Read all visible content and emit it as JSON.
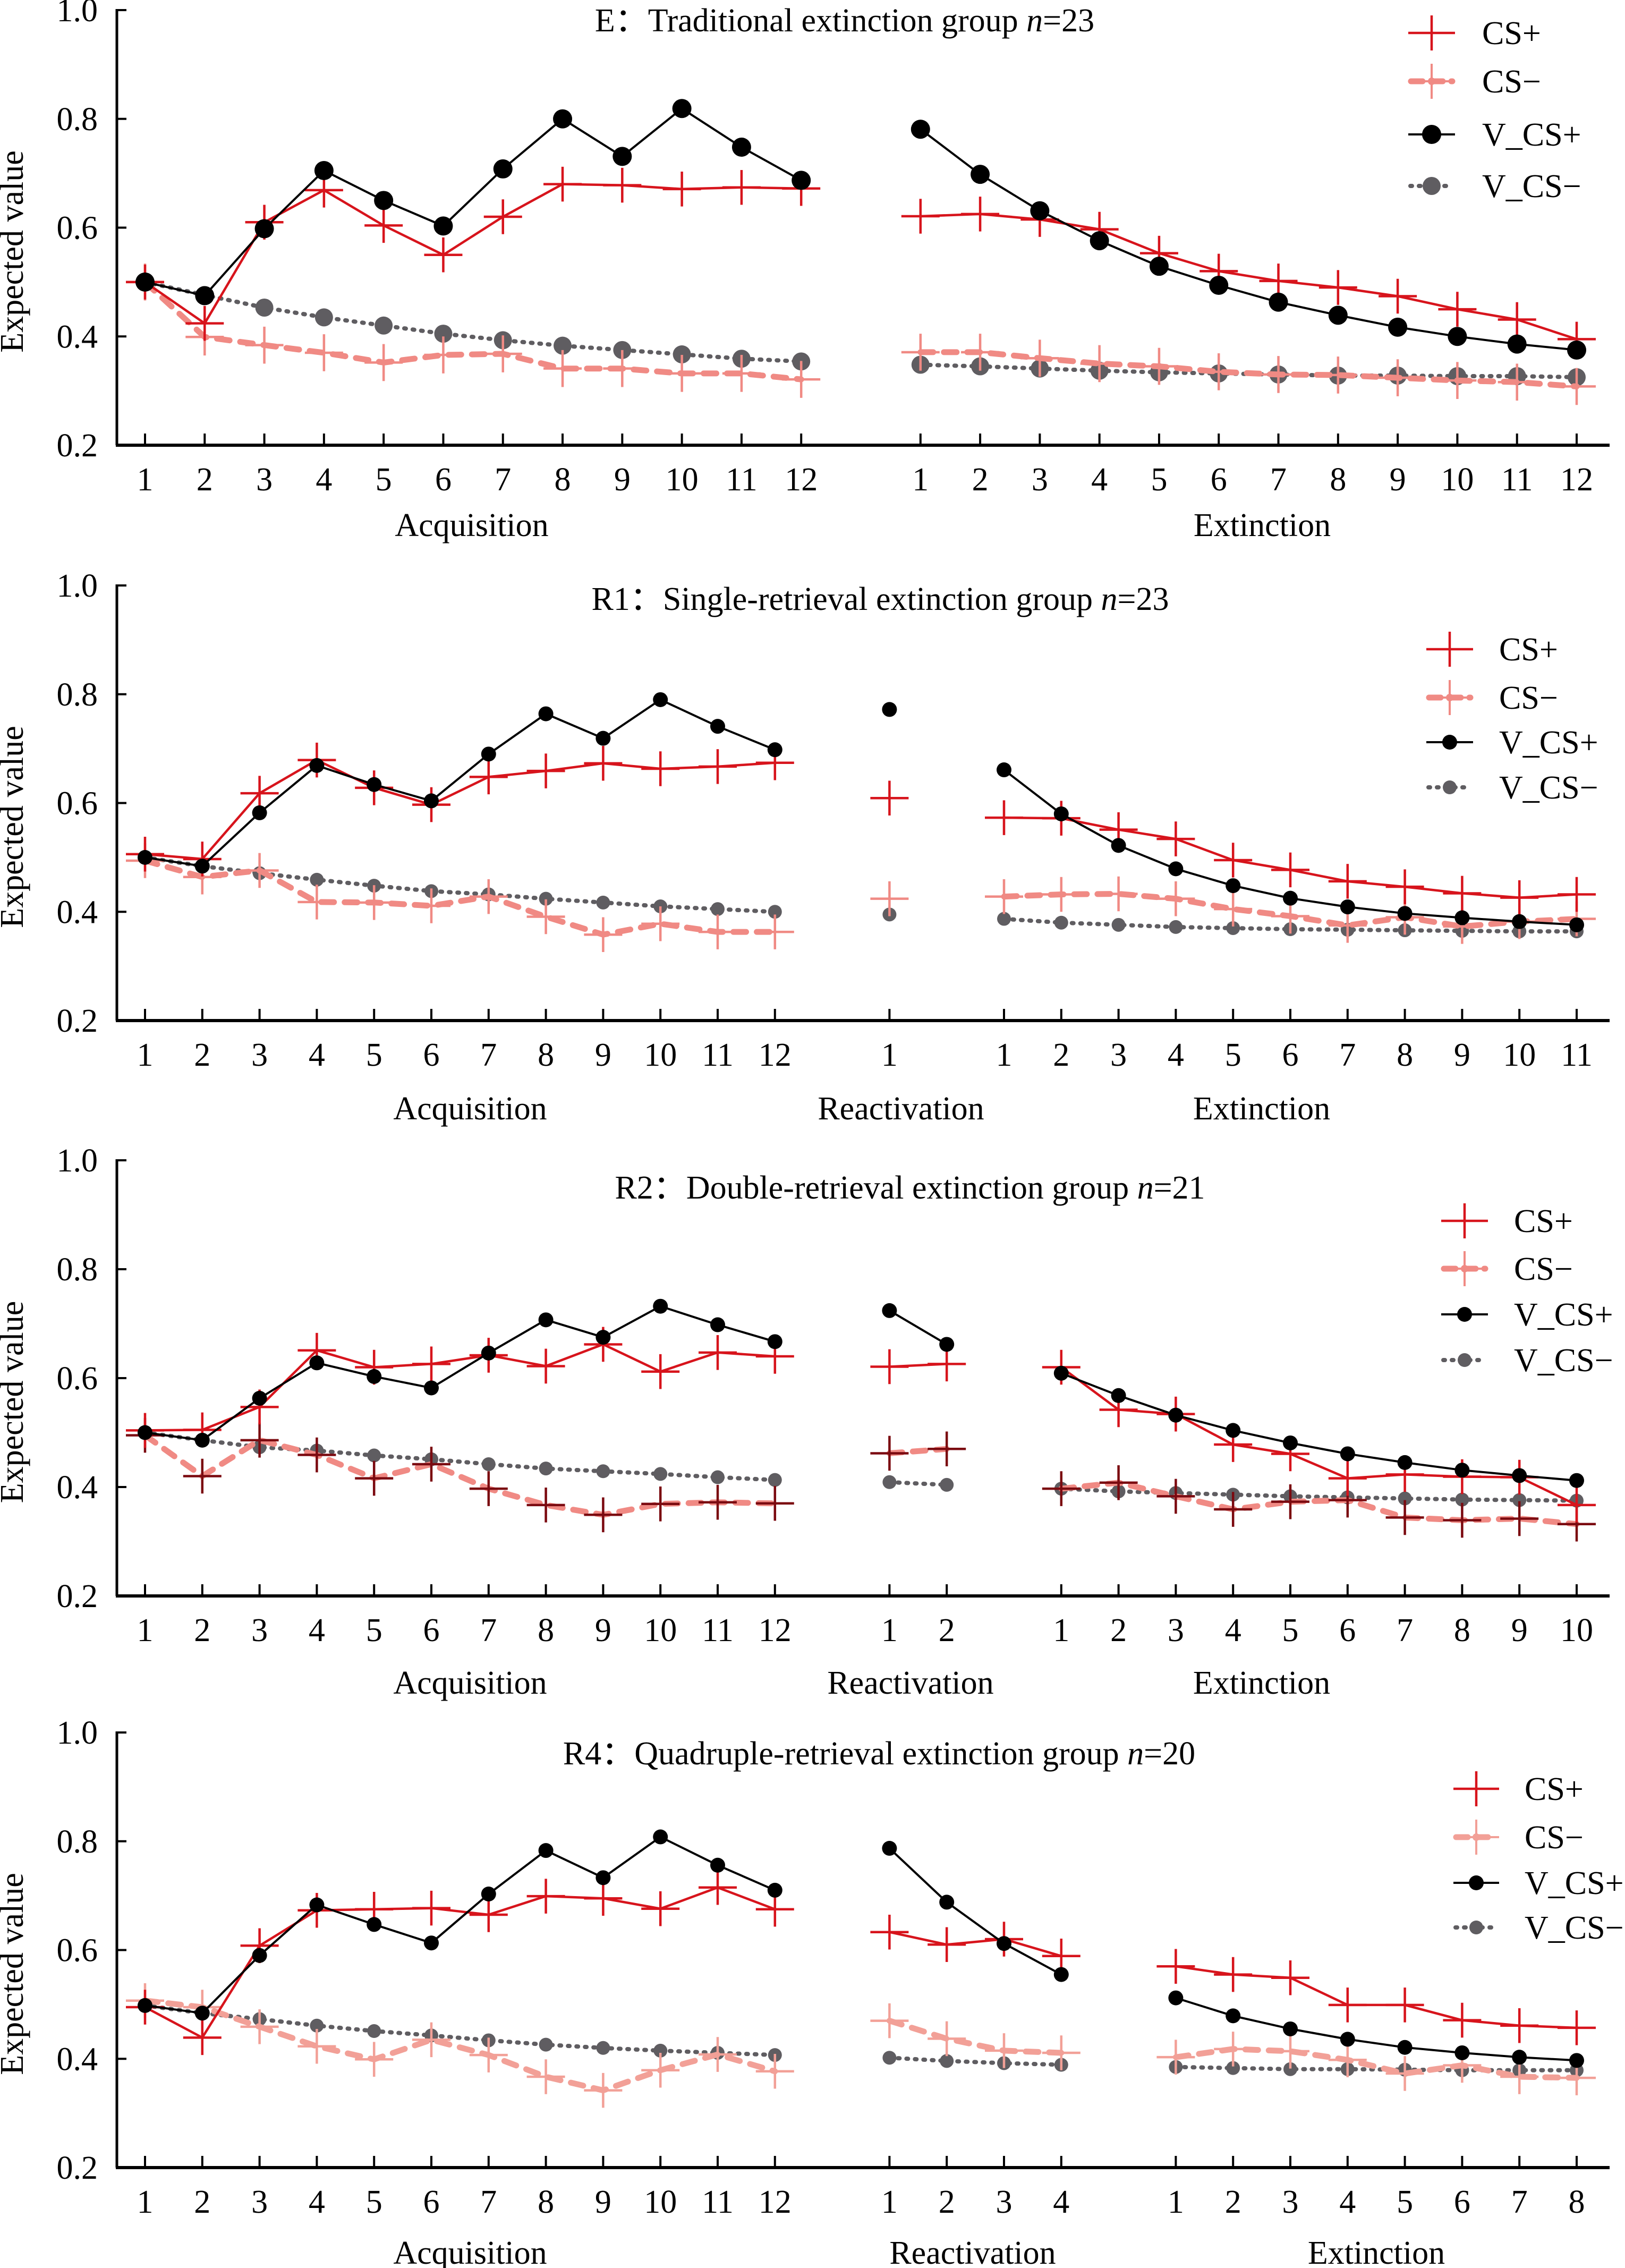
{
  "chart_data": [
    {
      "type": "line",
      "panel_id": "E",
      "title": "E：Traditional extinction group n=23",
      "title_parts": {
        "prefix": "E：Traditional extinction group ",
        "n_symbol": "n",
        "n_value": "=23"
      },
      "n": 23,
      "ylabel": "Expected value",
      "ylim": [
        0.2,
        1.0
      ],
      "yticks": [
        0.2,
        0.4,
        0.6,
        0.8,
        1.0
      ],
      "ytick_labels": [
        "0.2",
        "0.4",
        "0.6",
        "0.8",
        "1.0"
      ],
      "grid": false,
      "legend": {
        "placement": "top-right",
        "entries": [
          "CS+",
          "CS−",
          "V_CS+",
          "V_CS−"
        ]
      },
      "phases": [
        {
          "label": "Acquisition",
          "x": [
            1,
            2,
            3,
            4,
            5,
            6,
            7,
            8,
            9,
            10,
            11,
            12
          ]
        },
        {
          "label": "Extinction",
          "x": [
            1,
            2,
            3,
            4,
            5,
            6,
            7,
            8,
            9,
            10,
            11,
            12
          ]
        }
      ],
      "series": [
        {
          "name": "CS+",
          "kind": "cs_plus",
          "color": "#d7141c",
          "line_style": "solid",
          "marker": "plus with error bar",
          "sem_approx": 0.032,
          "values": [
            [
              0.5,
              0.424,
              0.61,
              0.669,
              0.604,
              0.55,
              0.62,
              0.68,
              0.678,
              0.671,
              0.674,
              0.672
            ],
            [
              0.621,
              0.625,
              0.615,
              0.597,
              0.553,
              0.52,
              0.502,
              0.49,
              0.474,
              0.45,
              0.431,
              0.395
            ]
          ]
        },
        {
          "name": "CS−",
          "kind": "cs_minus",
          "color": "#f08a84",
          "marker_color": "#f08a84",
          "line_style": "dashed",
          "marker": "plus with error bar",
          "sem_approx": 0.034,
          "values": [
            [
              0.5,
              0.399,
              0.384,
              0.37,
              0.352,
              0.366,
              0.368,
              0.341,
              0.341,
              0.332,
              0.332,
              0.321
            ],
            [
              0.371,
              0.371,
              0.36,
              0.35,
              0.345,
              0.335,
              0.33,
              0.329,
              0.324,
              0.319,
              0.316,
              0.308
            ]
          ]
        },
        {
          "name": "V_CS+",
          "kind": "v_cs_plus",
          "color": "#000000",
          "line_style": "solid",
          "marker": "filled circle",
          "values": [
            [
              0.5,
              0.475,
              0.598,
              0.705,
              0.65,
              0.603,
              0.708,
              0.8,
              0.731,
              0.819,
              0.748,
              0.687
            ],
            [
              0.781,
              0.698,
              0.631,
              0.576,
              0.529,
              0.494,
              0.463,
              0.439,
              0.417,
              0.4,
              0.386,
              0.375
            ]
          ]
        },
        {
          "name": "V_CS−",
          "kind": "v_cs_minus",
          "color": "#5f5d61",
          "line_style": "dotted",
          "marker": "filled circle",
          "values": [
            [
              0.5,
              0.476,
              0.453,
              0.435,
              0.42,
              0.405,
              0.393,
              0.383,
              0.375,
              0.367,
              0.359,
              0.354
            ],
            [
              0.348,
              0.345,
              0.341,
              0.337,
              0.334,
              0.332,
              0.33,
              0.328,
              0.328,
              0.327,
              0.327,
              0.325
            ]
          ]
        }
      ]
    },
    {
      "type": "line",
      "panel_id": "R1",
      "title": "R1：Single-retrieval extinction group n=23",
      "title_parts": {
        "prefix": "R1：Single-retrieval extinction group ",
        "n_symbol": "n",
        "n_value": "=23"
      },
      "n": 23,
      "ylabel": "Expected value",
      "ylim": [
        0.2,
        1.0
      ],
      "yticks": [
        0.2,
        0.4,
        0.6,
        0.8,
        1.0
      ],
      "ytick_labels": [
        "0.2",
        "0.4",
        "0.6",
        "0.8",
        "1.0"
      ],
      "grid": false,
      "legend": {
        "placement": "top-right",
        "entries": [
          "CS+",
          "CS−",
          "V_CS+",
          "V_CS−"
        ]
      },
      "phases": [
        {
          "label": "Acquisition",
          "x": [
            1,
            2,
            3,
            4,
            5,
            6,
            7,
            8,
            9,
            10,
            11,
            12
          ]
        },
        {
          "label": "Reactivation",
          "x": [
            1
          ]
        },
        {
          "label": "Extinction",
          "x": [
            1,
            2,
            3,
            4,
            5,
            6,
            7,
            8,
            9,
            10,
            11
          ]
        }
      ],
      "series": [
        {
          "name": "CS+",
          "kind": "cs_plus",
          "color": "#d7141c",
          "line_style": "solid",
          "marker": "plus with error bar",
          "sem_approx": 0.032,
          "values": [
            [
              0.506,
              0.497,
              0.618,
              0.679,
              0.628,
              0.597,
              0.648,
              0.659,
              0.673,
              0.663,
              0.667,
              0.674
            ],
            [
              0.609
            ],
            [
              0.573,
              0.572,
              0.551,
              0.534,
              0.495,
              0.477,
              0.456,
              0.446,
              0.434,
              0.426,
              0.432
            ]
          ]
        },
        {
          "name": "CS−",
          "kind": "cs_minus",
          "color": "#f08a84",
          "marker_color": "#f08a84",
          "line_style": "dashed",
          "marker": "plus with error bar",
          "sem_approx": 0.032,
          "values": [
            [
              0.494,
              0.464,
              0.476,
              0.418,
              0.417,
              0.411,
              0.428,
              0.391,
              0.358,
              0.378,
              0.363,
              0.363
            ],
            [
              0.424
            ],
            [
              0.428,
              0.432,
              0.433,
              0.424,
              0.405,
              0.392,
              0.375,
              0.39,
              0.373,
              0.382,
              0.387
            ]
          ]
        },
        {
          "name": "V_CS+",
          "kind": "v_cs_plus",
          "color": "#000000",
          "line_style": "solid",
          "marker": "filled circle",
          "values": [
            [
              0.5,
              0.484,
              0.582,
              0.669,
              0.634,
              0.604,
              0.69,
              0.764,
              0.719,
              0.79,
              0.741,
              0.698
            ],
            [
              0.772
            ],
            [
              0.661,
              0.58,
              0.522,
              0.479,
              0.448,
              0.425,
              0.409,
              0.397,
              0.389,
              0.382,
              0.376
            ]
          ]
        },
        {
          "name": "V_CS−",
          "kind": "v_cs_minus",
          "color": "#5f5d61",
          "line_style": "dotted",
          "marker": "filled circle",
          "values": [
            [
              0.5,
              0.484,
              0.471,
              0.459,
              0.448,
              0.438,
              0.432,
              0.424,
              0.417,
              0.41,
              0.405,
              0.4
            ],
            [
              0.395
            ],
            [
              0.387,
              0.38,
              0.376,
              0.372,
              0.37,
              0.368,
              0.367,
              0.366,
              0.365,
              0.364,
              0.364
            ]
          ]
        }
      ]
    },
    {
      "type": "line",
      "panel_id": "R2",
      "title": "R2：Double-retrieval extinction group n=21",
      "title_parts": {
        "prefix": "R2：Double-retrieval extinction group ",
        "n_symbol": "n",
        "n_value": "=21"
      },
      "n": 21,
      "ylabel": "Expected value",
      "ylim": [
        0.2,
        1.0
      ],
      "yticks": [
        0.2,
        0.4,
        0.6,
        0.8,
        1.0
      ],
      "ytick_labels": [
        "0.2",
        "0.4",
        "0.6",
        "0.8",
        "1.0"
      ],
      "grid": false,
      "legend": {
        "placement": "top-right",
        "entries": [
          "CS+",
          "CS−",
          "V_CS+",
          "V_CS−"
        ]
      },
      "phases": [
        {
          "label": "Acquisition",
          "x": [
            1,
            2,
            3,
            4,
            5,
            6,
            7,
            8,
            9,
            10,
            11,
            12
          ]
        },
        {
          "label": "Reactivation",
          "x": [
            1,
            2
          ]
        },
        {
          "label": "Extinction",
          "x": [
            1,
            2,
            3,
            4,
            5,
            6,
            7,
            8,
            9,
            10
          ]
        }
      ],
      "series": [
        {
          "name": "CS+",
          "kind": "cs_plus",
          "color": "#d7141c",
          "line_style": "solid",
          "marker": "plus with error bar",
          "sem_approx": 0.032,
          "values": [
            [
              0.504,
              0.505,
              0.547,
              0.651,
              0.62,
              0.626,
              0.642,
              0.622,
              0.662,
              0.612,
              0.647,
              0.64
            ],
            [
              0.621,
              0.626
            ],
            [
              0.62,
              0.542,
              0.534,
              0.478,
              0.461,
              0.416,
              0.423,
              0.419,
              0.418,
              0.367
            ]
          ]
        },
        {
          "name": "CS−",
          "kind": "cs_minus",
          "color": "#f08a84",
          "marker_color": "#7b0a10",
          "line_style": "dashed",
          "marker": "plus with error bar",
          "sem_approx": 0.032,
          "values": [
            [
              0.495,
              0.42,
              0.486,
              0.459,
              0.416,
              0.442,
              0.397,
              0.367,
              0.349,
              0.369,
              0.372,
              0.37
            ],
            [
              0.462,
              0.47
            ],
            [
              0.397,
              0.408,
              0.383,
              0.359,
              0.373,
              0.376,
              0.344,
              0.339,
              0.342,
              0.332
            ]
          ]
        },
        {
          "name": "V_CS+",
          "kind": "v_cs_plus",
          "color": "#000000",
          "line_style": "solid",
          "marker": "filled circle",
          "values": [
            [
              0.5,
              0.486,
              0.563,
              0.628,
              0.603,
              0.582,
              0.646,
              0.707,
              0.675,
              0.732,
              0.698,
              0.667
            ],
            [
              0.724,
              0.662
            ],
            [
              0.609,
              0.568,
              0.532,
              0.504,
              0.481,
              0.461,
              0.445,
              0.431,
              0.421,
              0.412
            ]
          ]
        },
        {
          "name": "V_CS−",
          "kind": "v_cs_minus",
          "color": "#5f5d61",
          "line_style": "dotted",
          "marker": "filled circle",
          "values": [
            [
              0.5,
              0.486,
              0.473,
              0.467,
              0.458,
              0.451,
              0.442,
              0.434,
              0.429,
              0.424,
              0.418,
              0.413
            ],
            [
              0.409,
              0.404
            ],
            [
              0.397,
              0.392,
              0.389,
              0.386,
              0.383,
              0.381,
              0.379,
              0.377,
              0.376,
              0.375
            ]
          ]
        }
      ]
    },
    {
      "type": "line",
      "panel_id": "R4",
      "title": "R4：Quadruple-retrieval extinction group n=20",
      "title_parts": {
        "prefix": "R4：Quadruple-retrieval extinction group ",
        "n_symbol": "n",
        "n_value": "=20"
      },
      "n": 20,
      "ylabel": "Expected value",
      "ylim": [
        0.2,
        1.0
      ],
      "yticks": [
        0.2,
        0.4,
        0.6,
        0.8,
        1.0
      ],
      "ytick_labels": [
        "0.2",
        "0.4",
        "0.6",
        "0.8",
        "1.0"
      ],
      "grid": false,
      "legend": {
        "placement": "top-right",
        "entries": [
          "CS+",
          "CS−",
          "V_CS+",
          "V_CS−"
        ]
      },
      "phases": [
        {
          "label": "Acquisition",
          "x": [
            1,
            2,
            3,
            4,
            5,
            6,
            7,
            8,
            9,
            10,
            11,
            12
          ]
        },
        {
          "label": "Reactivation",
          "x": [
            1,
            2,
            3,
            4
          ]
        },
        {
          "label": "Extinction",
          "x": [
            1,
            2,
            3,
            4,
            5,
            6,
            7,
            8
          ]
        }
      ],
      "series": [
        {
          "name": "CS+",
          "kind": "cs_plus",
          "color": "#d7141c",
          "line_style": "solid",
          "marker": "plus with error bar",
          "sem_approx": 0.032,
          "values": [
            [
              0.495,
              0.439,
              0.608,
              0.673,
              0.675,
              0.677,
              0.665,
              0.699,
              0.695,
              0.676,
              0.715,
              0.675
            ],
            [
              0.633,
              0.61,
              0.62,
              0.589
            ],
            [
              0.57,
              0.555,
              0.549,
              0.499,
              0.499,
              0.471,
              0.461,
              0.457
            ]
          ]
        },
        {
          "name": "CS−",
          "kind": "cs_minus",
          "color": "#f2a097",
          "marker_color": "#f2a097",
          "line_style": "dashed",
          "marker": "plus with error bar",
          "sem_approx": 0.032,
          "values": [
            [
              0.507,
              0.495,
              0.459,
              0.423,
              0.399,
              0.435,
              0.407,
              0.367,
              0.342,
              0.379,
              0.408,
              0.377
            ],
            [
              0.47,
              0.437,
              0.415,
              0.411
            ],
            [
              0.403,
              0.418,
              0.414,
              0.398,
              0.373,
              0.388,
              0.367,
              0.365
            ]
          ]
        },
        {
          "name": "V_CS+",
          "kind": "v_cs_plus",
          "color": "#000000",
          "line_style": "solid",
          "marker": "filled circle",
          "values": [
            [
              0.498,
              0.484,
              0.59,
              0.683,
              0.647,
              0.613,
              0.703,
              0.783,
              0.733,
              0.808,
              0.756,
              0.71
            ],
            [
              0.787,
              0.688,
              0.612,
              0.555
            ],
            [
              0.512,
              0.479,
              0.455,
              0.436,
              0.421,
              0.411,
              0.403,
              0.397
            ]
          ]
        },
        {
          "name": "V_CS−",
          "kind": "v_cs_minus",
          "color": "#5f5d61",
          "line_style": "dotted",
          "marker": "filled circle",
          "values": [
            [
              0.498,
              0.484,
              0.473,
              0.461,
              0.451,
              0.443,
              0.434,
              0.426,
              0.42,
              0.415,
              0.411,
              0.407
            ],
            [
              0.402,
              0.396,
              0.392,
              0.389
            ],
            [
              0.385,
              0.383,
              0.381,
              0.381,
              0.38,
              0.379,
              0.379,
              0.379
            ]
          ]
        }
      ]
    }
  ]
}
